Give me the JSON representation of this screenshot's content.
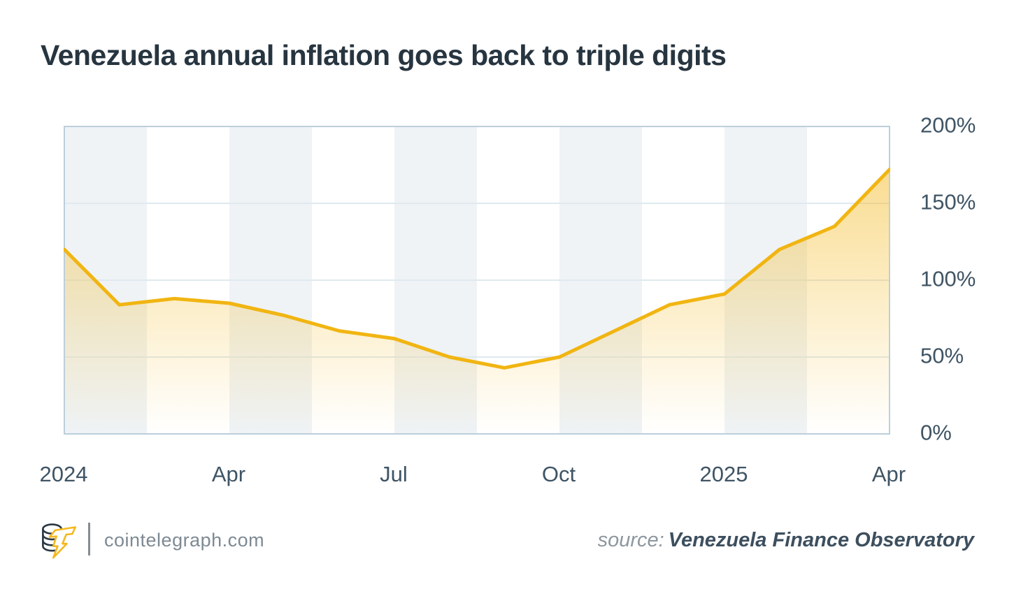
{
  "title": "Venezuela annual inflation goes back to triple digits",
  "chart_data": {
    "type": "area",
    "title": "Venezuela annual inflation goes back to triple digits",
    "x": [
      "Jan 2024",
      "Feb 2024",
      "Mar 2024",
      "Apr 2024",
      "May 2024",
      "Jun 2024",
      "Jul 2024",
      "Aug 2024",
      "Sep 2024",
      "Oct 2024",
      "Nov 2024",
      "Dec 2024",
      "Jan 2025",
      "Feb 2025",
      "Mar 2025",
      "Apr 2025"
    ],
    "values": [
      120,
      84,
      88,
      85,
      77,
      67,
      62,
      50,
      43,
      50,
      67,
      84,
      91,
      120,
      135,
      172
    ],
    "unit": "%",
    "xlabel": "",
    "ylabel": "",
    "ylim": [
      0,
      200
    ],
    "grid": "horizontal",
    "legend_position": "none",
    "y_ticks": [
      {
        "value": 200,
        "label": "200%"
      },
      {
        "value": 150,
        "label": "150%"
      },
      {
        "value": 100,
        "label": "100%"
      },
      {
        "value": 50,
        "label": "50%"
      },
      {
        "value": 0,
        "label": "0%"
      }
    ],
    "x_ticks": [
      {
        "index": 0,
        "label": "2024"
      },
      {
        "index": 3,
        "label": "Apr"
      },
      {
        "index": 6,
        "label": "Jul"
      },
      {
        "index": 9,
        "label": "Oct"
      },
      {
        "index": 12,
        "label": "2025"
      },
      {
        "index": 15,
        "label": "Apr"
      }
    ],
    "gridline_values": [
      50,
      100,
      150
    ],
    "band_count": 10,
    "colors": {
      "line": "#f1b512",
      "area_top": "rgba(244,186,36,0.50)",
      "area_bottom": "rgba(244,186,36,0)",
      "band": "#eff3f6",
      "band_alt": "#ffffff",
      "border": "#bccfdb",
      "grid": "#dfe9ef",
      "tick_text": "#3f5464",
      "title_text": "#273540"
    }
  },
  "footer": {
    "site": "cointelegraph.com",
    "source_label": "source:",
    "source_name": "Venezuela Finance Observatory",
    "logo_icon": "cointelegraph-coins-lightning-logo"
  }
}
